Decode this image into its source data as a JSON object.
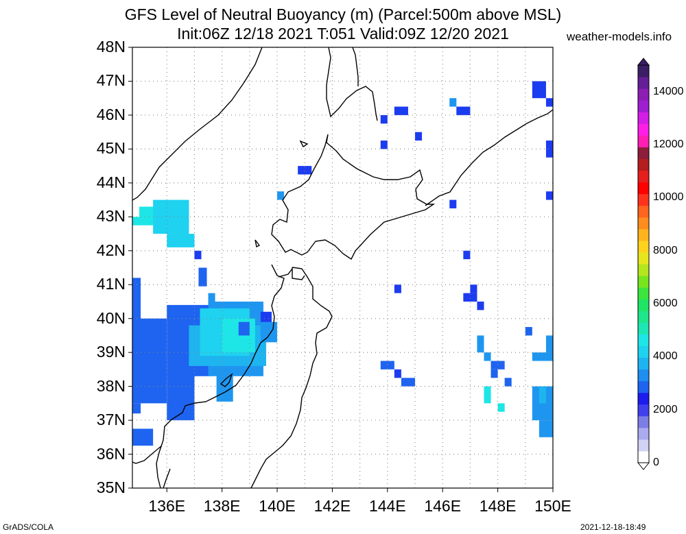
{
  "header": {
    "title_line1": "GFS Level of Neutral Buoyancy (m) (Parcel:500m above MSL)",
    "title_line2": "Init:06Z 12/18 2021 T:051 Valid:09Z 12/20 2021",
    "site": "weather-models.info"
  },
  "axes": {
    "lat_labels": [
      "48N",
      "47N",
      "46N",
      "45N",
      "44N",
      "43N",
      "42N",
      "41N",
      "40N",
      "39N",
      "38N",
      "37N",
      "36N",
      "35N"
    ],
    "lon_labels": [
      "136E",
      "138E",
      "140E",
      "142E",
      "144E",
      "146E",
      "148E",
      "150E"
    ],
    "lat_range": [
      35,
      48
    ],
    "lon_range": [
      134.75,
      150
    ]
  },
  "colorbar": {
    "labels": [
      "14000",
      "12000",
      "10000",
      "8000",
      "6000",
      "4000",
      "2000",
      "0"
    ],
    "colors": [
      "#ffffff",
      "#d2d2f4",
      "#aaaaee",
      "#7d7de6",
      "#4040ee",
      "#1c1cee",
      "#1e64f0",
      "#1e8ef0",
      "#1eb4f0",
      "#1ed2f0",
      "#1ee6e6",
      "#1ee6b4",
      "#1ee68c",
      "#1ee664",
      "#3ce63c",
      "#78e61e",
      "#b4e61e",
      "#e6e61e",
      "#ffd21e",
      "#ffb41e",
      "#ff8c1e",
      "#ff641e",
      "#ff321e",
      "#ff0000",
      "#e61e1e",
      "#b41e1e",
      "#8c1e3c",
      "#ff1eb4",
      "#ff1ee6",
      "#d21ee6",
      "#a01ed2",
      "#8c1eb4",
      "#641e96",
      "#3c1e64"
    ]
  },
  "footer": {
    "left": "GrADS/COLA",
    "right": "2021-12-18-18:49"
  },
  "field": {
    "units": "m",
    "colors": {
      "dark_blue": "#1c3cf0",
      "blue": "#1e64f0",
      "light_blue": "#1e96f0",
      "sky": "#1eb4f0",
      "cyan": "#1ed2f0",
      "aqua": "#1ee6e6"
    }
  }
}
